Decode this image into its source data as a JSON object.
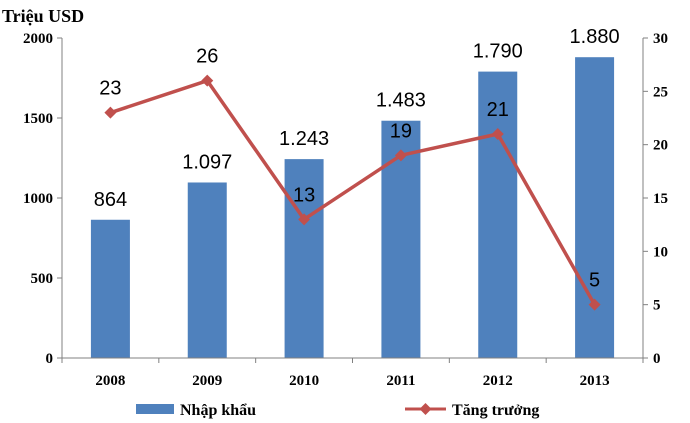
{
  "chart_data": {
    "type": "bar",
    "ylabel": "Triệu USD",
    "categories": [
      "2008",
      "2009",
      "2010",
      "2011",
      "2012",
      "2013"
    ],
    "series": [
      {
        "name": "Nhập khẩu",
        "type": "bar",
        "axis": "left",
        "values": [
          864,
          1097,
          1243,
          1483,
          1790,
          1880
        ],
        "labels": [
          "864",
          "1.097",
          "1.243",
          "1.483",
          "1.790",
          "1.880"
        ],
        "color": "#4f81bd"
      },
      {
        "name": "Tăng trưởng",
        "type": "line",
        "axis": "right",
        "values": [
          23,
          26,
          13,
          19,
          21,
          5
        ],
        "labels": [
          "23",
          "26",
          "13",
          "19",
          "21",
          "5"
        ],
        "color": "#c0504d"
      }
    ],
    "ylim": [
      0,
      2000
    ],
    "yticks": [
      0,
      500,
      1000,
      1500,
      2000
    ],
    "y2lim": [
      0,
      30
    ],
    "y2ticks": [
      0,
      5,
      10,
      15,
      20,
      25,
      30
    ],
    "grid": false,
    "legend": "bottom"
  }
}
